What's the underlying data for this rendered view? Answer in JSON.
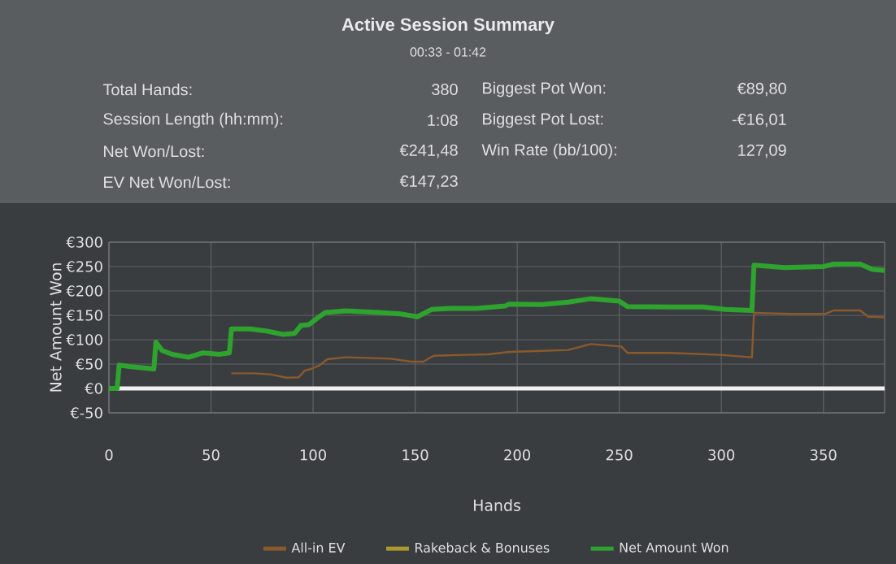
{
  "chart_data": {
    "type": "line",
    "title": "Active Session Summary",
    "subtitle": "00:33 - 01:42",
    "annotations": [
      "Total Hands:",
      "380",
      "Biggest Pot Won:",
      "€89,80",
      "Session Length (hh:mm):",
      "1:08",
      "Biggest Pot Lost:",
      "-€16,01",
      "Net Won/Lost:",
      "€241,48",
      "Win Rate (bb/100):",
      "127,09",
      "EV Net Won/Lost:",
      "€147,23"
    ],
    "xlabel": "Hands",
    "ylabel": "Net Amount Won",
    "xlim": [
      0,
      380
    ],
    "xticks": [
      0,
      50,
      100,
      150,
      200,
      250,
      300,
      350
    ],
    "ylim": [
      -50,
      300
    ],
    "yticks": [
      {
        "value": -50,
        "label": "€-50"
      },
      {
        "value": 0,
        "label": "€0"
      },
      {
        "value": 50,
        "label": "€50"
      },
      {
        "value": 100,
        "label": "€100"
      },
      {
        "value": 150,
        "label": "€150"
      },
      {
        "value": 200,
        "label": "€200"
      },
      {
        "value": 250,
        "label": "€250"
      },
      {
        "value": 300,
        "label": "€300"
      }
    ],
    "grid": true,
    "legend": "bottom",
    "ref_lines": [
      {
        "axis": "y",
        "value": 0,
        "color": "#f0f0f0"
      }
    ],
    "series": [
      {
        "name": "All-in EV",
        "color": "#8a5a2b",
        "x": [
          60,
          71,
          79,
          87,
          93,
          96,
          99,
          103,
          107,
          116,
          138,
          148,
          154,
          159,
          175,
          186,
          196,
          212,
          225,
          236,
          251,
          254,
          275,
          299,
          315,
          316,
          334,
          351,
          355,
          368,
          372,
          380
        ],
        "values": [
          31,
          31,
          29,
          22,
          23,
          37,
          40,
          47,
          60,
          64,
          61,
          55,
          55,
          67,
          69,
          70,
          75,
          77,
          79,
          91,
          86,
          73,
          73,
          69,
          64,
          155,
          153,
          153,
          160,
          160,
          147,
          146
        ]
      },
      {
        "name": "Rakeback & Bonuses",
        "color": "#a89a2c"
      },
      {
        "name": "Net Amount Won",
        "color": "#2ea32e",
        "x": [
          0,
          4,
          5,
          10,
          22,
          23,
          26,
          31,
          39,
          46,
          54,
          59,
          60,
          69,
          77,
          85,
          91,
          94,
          98,
          102,
          106,
          116,
          132,
          143,
          151,
          158,
          167,
          180,
          194,
          196,
          212,
          225,
          236,
          250,
          254,
          275,
          291,
          302,
          315,
          316,
          331,
          350,
          355,
          368,
          374,
          380
        ],
        "values": [
          0,
          0,
          48,
          45,
          40,
          95,
          78,
          70,
          64,
          73,
          70,
          73,
          122,
          122,
          118,
          111,
          113,
          129,
          131,
          144,
          156,
          159,
          156,
          153,
          147,
          162,
          164,
          164,
          169,
          173,
          172,
          177,
          184,
          179,
          168,
          167,
          167,
          162,
          160,
          253,
          248,
          250,
          255,
          255,
          244,
          242
        ]
      }
    ]
  }
}
